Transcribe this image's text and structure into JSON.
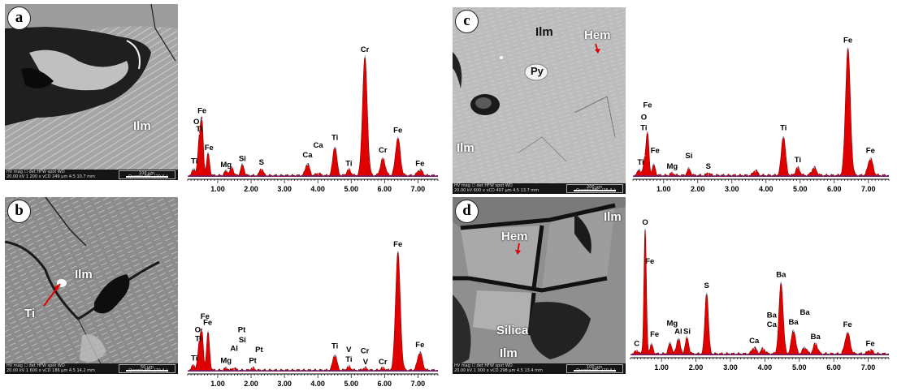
{
  "panels": [
    {
      "letter": "a",
      "labels": [
        {
          "text": "Ilm",
          "color": "white"
        }
      ],
      "sem_bar": {
        "row1": "HV     mag ☐   det   HFW   spot   WD",
        "row2": "20.00 kV  1 200 x  vCD  249 μm  4.5  10.7 mm",
        "scale": "100 μm",
        "instrument": "Quanta FEG (20 A )"
      }
    },
    {
      "letter": "b",
      "labels": [
        {
          "text": "Ilm",
          "color": "white"
        },
        {
          "text": "Ti",
          "color": "white"
        }
      ],
      "sem_bar": {
        "row1": "HV     mag ☐   det   HFW   spot   WD",
        "row2": "20.00 kV  1 600 x  vCD  186 μm  4.5  14.2 mm",
        "scale": "50 μm",
        "instrument": "Quanta FEG (20 A )"
      }
    },
    {
      "letter": "c",
      "labels": [
        {
          "text": "Ilm",
          "color": "dark"
        },
        {
          "text": "Hem",
          "color": "white"
        },
        {
          "text": "Py",
          "color": "dark"
        },
        {
          "text": "Ilm",
          "color": "white"
        }
      ],
      "sem_bar": {
        "row1": "HV     mag ☐   det   HFW   spot   WD",
        "row2": "20.00 kV  600 x  vCD  497 μm  4.5  13.7 mm",
        "scale": "200 μm",
        "instrument": "Quanta FEG (25 A )"
      }
    },
    {
      "letter": "d",
      "labels": [
        {
          "text": "Ilm",
          "color": "white"
        },
        {
          "text": "Hem",
          "color": "white"
        },
        {
          "text": "Silica",
          "color": "white"
        },
        {
          "text": "Ilm",
          "color": "white"
        }
      ],
      "sem_bar": {
        "row1": "HV     mag ☐   det   HFW   spot   WD",
        "row2": "20.00 kV  1 000 x  vCD  298 μm  4.5  13.4 mm",
        "scale": "100 μm",
        "instrument": "Quanta FEG (20 A )"
      }
    }
  ],
  "chart_data": [
    {
      "type": "area",
      "panel": "a",
      "xlim": [
        0.1,
        7.6
      ],
      "x_ticks": [
        "1.00",
        "2.00",
        "3.00",
        "4.00",
        "5.00",
        "6.00",
        "7.00"
      ],
      "x_tick_values": [
        1,
        2,
        3,
        4,
        5,
        6,
        7
      ],
      "ylim": [
        0,
        1
      ],
      "peaks": [
        {
          "x": 0.28,
          "h": 0.06,
          "w": 0.04
        },
        {
          "x": 0.45,
          "h": 0.3,
          "w": 0.045
        },
        {
          "x": 0.53,
          "h": 0.4,
          "w": 0.04
        },
        {
          "x": 0.71,
          "h": 0.18,
          "w": 0.045
        },
        {
          "x": 1.25,
          "h": 0.04,
          "w": 0.05
        },
        {
          "x": 1.42,
          "h": 0.07,
          "w": 0.05
        },
        {
          "x": 1.74,
          "h": 0.09,
          "w": 0.05
        },
        {
          "x": 2.31,
          "h": 0.06,
          "w": 0.05
        },
        {
          "x": 3.69,
          "h": 0.1,
          "w": 0.06
        },
        {
          "x": 4.01,
          "h": 0.02,
          "w": 0.06
        },
        {
          "x": 4.51,
          "h": 0.24,
          "w": 0.06
        },
        {
          "x": 4.93,
          "h": 0.05,
          "w": 0.06
        },
        {
          "x": 5.41,
          "h": 0.97,
          "w": 0.07
        },
        {
          "x": 5.95,
          "h": 0.14,
          "w": 0.07
        },
        {
          "x": 6.4,
          "h": 0.31,
          "w": 0.07
        },
        {
          "x": 7.06,
          "h": 0.05,
          "w": 0.07
        }
      ],
      "annotations": [
        {
          "text": "O",
          "x": 0.36,
          "y": 0.43
        },
        {
          "text": "Fe",
          "x": 0.53,
          "y": 0.52
        },
        {
          "text": "Ti",
          "x": 0.45,
          "y": 0.37
        },
        {
          "text": "Ti",
          "x": 0.3,
          "y": 0.11
        },
        {
          "text": "Fe",
          "x": 0.74,
          "y": 0.22
        },
        {
          "text": "Mg",
          "x": 1.25,
          "y": 0.08
        },
        {
          "text": "Si",
          "x": 1.74,
          "y": 0.13
        },
        {
          "text": "S",
          "x": 2.31,
          "y": 0.1
        },
        {
          "text": "Ca",
          "x": 3.69,
          "y": 0.16
        },
        {
          "text": "Ca",
          "x": 4.01,
          "y": 0.24
        },
        {
          "text": "Ti",
          "x": 4.51,
          "y": 0.3
        },
        {
          "text": "Ti",
          "x": 4.93,
          "y": 0.09
        },
        {
          "text": "Cr",
          "x": 5.41,
          "y": 1.02
        },
        {
          "text": "Cr",
          "x": 5.95,
          "y": 0.2
        },
        {
          "text": "Fe",
          "x": 6.4,
          "y": 0.36
        },
        {
          "text": "Fe",
          "x": 7.06,
          "y": 0.09
        }
      ]
    },
    {
      "type": "area",
      "panel": "b",
      "xlim": [
        0.1,
        7.6
      ],
      "x_ticks": [
        "1.00",
        "2.00",
        "3.00",
        "4.00",
        "5.00",
        "6.00",
        "7.00"
      ],
      "x_tick_values": [
        1,
        2,
        3,
        4,
        5,
        6,
        7
      ],
      "ylim": [
        0,
        1
      ],
      "peaks": [
        {
          "x": 0.27,
          "h": 0.05,
          "w": 0.04
        },
        {
          "x": 0.45,
          "h": 0.22,
          "w": 0.045
        },
        {
          "x": 0.53,
          "h": 0.28,
          "w": 0.04
        },
        {
          "x": 0.71,
          "h": 0.31,
          "w": 0.045
        },
        {
          "x": 1.25,
          "h": 0.02,
          "w": 0.05
        },
        {
          "x": 1.49,
          "h": 0.02,
          "w": 0.05
        },
        {
          "x": 2.05,
          "h": 0.02,
          "w": 0.05
        },
        {
          "x": 4.51,
          "h": 0.13,
          "w": 0.06
        },
        {
          "x": 4.93,
          "h": 0.03,
          "w": 0.06
        },
        {
          "x": 5.41,
          "h": 0.02,
          "w": 0.06
        },
        {
          "x": 5.95,
          "h": 0.02,
          "w": 0.06
        },
        {
          "x": 6.4,
          "h": 0.97,
          "w": 0.07
        },
        {
          "x": 7.06,
          "h": 0.15,
          "w": 0.07
        }
      ],
      "annotations": [
        {
          "text": "O",
          "x": 0.4,
          "y": 0.32
        },
        {
          "text": "Ti",
          "x": 0.42,
          "y": 0.25
        },
        {
          "text": "Fe",
          "x": 0.62,
          "y": 0.43
        },
        {
          "text": "Fe",
          "x": 0.7,
          "y": 0.38
        },
        {
          "text": "Ti",
          "x": 0.3,
          "y": 0.09
        },
        {
          "text": "Mg",
          "x": 1.25,
          "y": 0.07
        },
        {
          "text": "Al",
          "x": 1.49,
          "y": 0.17
        },
        {
          "text": "Pt",
          "x": 1.72,
          "y": 0.32
        },
        {
          "text": "Si",
          "x": 1.74,
          "y": 0.24
        },
        {
          "text": "Pt",
          "x": 2.05,
          "y": 0.07
        },
        {
          "text": "Pt",
          "x": 2.24,
          "y": 0.16
        },
        {
          "text": "Ti",
          "x": 4.51,
          "y": 0.19
        },
        {
          "text": "V",
          "x": 4.93,
          "y": 0.16
        },
        {
          "text": "Ti",
          "x": 4.93,
          "y": 0.08
        },
        {
          "text": "Cr",
          "x": 5.41,
          "y": 0.15
        },
        {
          "text": "V",
          "x": 5.43,
          "y": 0.06
        },
        {
          "text": "Cr",
          "x": 5.95,
          "y": 0.06
        },
        {
          "text": "Fe",
          "x": 6.4,
          "y": 1.02
        },
        {
          "text": "Fe",
          "x": 7.06,
          "y": 0.2
        }
      ]
    },
    {
      "type": "area",
      "panel": "c",
      "xlim": [
        0.1,
        7.6
      ],
      "x_ticks": [
        "1.00",
        "2.00",
        "3.00",
        "4.00",
        "5.00",
        "6.00",
        "7.00"
      ],
      "x_tick_values": [
        1,
        2,
        3,
        4,
        5,
        6,
        7
      ],
      "ylim": [
        0,
        1
      ],
      "peaks": [
        {
          "x": 0.28,
          "h": 0.05,
          "w": 0.04
        },
        {
          "x": 0.45,
          "h": 0.12,
          "w": 0.045
        },
        {
          "x": 0.53,
          "h": 0.3,
          "w": 0.04
        },
        {
          "x": 0.71,
          "h": 0.08,
          "w": 0.045
        },
        {
          "x": 1.25,
          "h": 0.02,
          "w": 0.05
        },
        {
          "x": 1.74,
          "h": 0.05,
          "w": 0.05
        },
        {
          "x": 2.31,
          "h": 0.02,
          "w": 0.05
        },
        {
          "x": 3.69,
          "h": 0.04,
          "w": 0.06
        },
        {
          "x": 4.51,
          "h": 0.3,
          "w": 0.06
        },
        {
          "x": 4.93,
          "h": 0.06,
          "w": 0.06
        },
        {
          "x": 5.41,
          "h": 0.06,
          "w": 0.07
        },
        {
          "x": 6.4,
          "h": 0.96,
          "w": 0.07
        },
        {
          "x": 7.06,
          "h": 0.13,
          "w": 0.07
        }
      ],
      "annotations": [
        {
          "text": "Fe",
          "x": 0.53,
          "y": 0.52
        },
        {
          "text": "O",
          "x": 0.42,
          "y": 0.43
        },
        {
          "text": "Ti",
          "x": 0.42,
          "y": 0.35
        },
        {
          "text": "Fe",
          "x": 0.75,
          "y": 0.18
        },
        {
          "text": "Ti",
          "x": 0.33,
          "y": 0.09
        },
        {
          "text": "Mg",
          "x": 1.25,
          "y": 0.06
        },
        {
          "text": "Si",
          "x": 1.74,
          "y": 0.14
        },
        {
          "text": "S",
          "x": 2.31,
          "y": 0.06
        },
        {
          "text": "Ti",
          "x": 4.51,
          "y": 0.35
        },
        {
          "text": "Ti",
          "x": 4.93,
          "y": 0.11
        },
        {
          "text": "Fe",
          "x": 6.4,
          "y": 1.01
        },
        {
          "text": "Fe",
          "x": 7.06,
          "y": 0.18
        }
      ]
    },
    {
      "type": "area",
      "panel": "d",
      "xlim": [
        0.1,
        7.6
      ],
      "x_ticks": [
        "1.00",
        "2.00",
        "3.00",
        "4.00",
        "5.00",
        "6.00",
        "7.00"
      ],
      "x_tick_values": [
        1,
        2,
        3,
        4,
        5,
        6,
        7
      ],
      "ylim": [
        0,
        1
      ],
      "peaks": [
        {
          "x": 0.28,
          "h": 0.03,
          "w": 0.04
        },
        {
          "x": 0.525,
          "h": 0.93,
          "w": 0.035
        },
        {
          "x": 0.71,
          "h": 0.07,
          "w": 0.045
        },
        {
          "x": 1.25,
          "h": 0.08,
          "w": 0.05
        },
        {
          "x": 1.49,
          "h": 0.12,
          "w": 0.05
        },
        {
          "x": 1.74,
          "h": 0.12,
          "w": 0.05
        },
        {
          "x": 2.31,
          "h": 0.46,
          "w": 0.05
        },
        {
          "x": 3.69,
          "h": 0.05,
          "w": 0.06
        },
        {
          "x": 3.95,
          "h": 0.04,
          "w": 0.06
        },
        {
          "x": 4.47,
          "h": 0.53,
          "w": 0.06
        },
        {
          "x": 4.83,
          "h": 0.18,
          "w": 0.06
        },
        {
          "x": 5.16,
          "h": 0.05,
          "w": 0.06
        },
        {
          "x": 5.47,
          "h": 0.08,
          "w": 0.06
        },
        {
          "x": 6.4,
          "h": 0.16,
          "w": 0.07
        },
        {
          "x": 7.06,
          "h": 0.03,
          "w": 0.07
        }
      ],
      "annotations": [
        {
          "text": "O",
          "x": 0.525,
          "y": 0.97
        },
        {
          "text": "Fe",
          "x": 0.66,
          "y": 0.68
        },
        {
          "text": "C",
          "x": 0.28,
          "y": 0.07
        },
        {
          "text": "Fe",
          "x": 0.8,
          "y": 0.14
        },
        {
          "text": "Mg",
          "x": 1.31,
          "y": 0.22
        },
        {
          "text": "Al",
          "x": 1.49,
          "y": 0.16
        },
        {
          "text": "Si",
          "x": 1.74,
          "y": 0.16
        },
        {
          "text": "S",
          "x": 2.31,
          "y": 0.5
        },
        {
          "text": "Ca",
          "x": 3.69,
          "y": 0.09
        },
        {
          "text": "Ba",
          "x": 4.47,
          "y": 0.58
        },
        {
          "text": "Ba",
          "x": 4.2,
          "y": 0.28
        },
        {
          "text": "Ca",
          "x": 4.2,
          "y": 0.21
        },
        {
          "text": "Ba",
          "x": 4.83,
          "y": 0.23
        },
        {
          "text": "Ba",
          "x": 5.16,
          "y": 0.3
        },
        {
          "text": "Ba",
          "x": 5.47,
          "y": 0.12
        },
        {
          "text": "Fe",
          "x": 6.4,
          "y": 0.21
        },
        {
          "text": "Fe",
          "x": 7.06,
          "y": 0.07
        }
      ]
    }
  ],
  "colors": {
    "peak_fill": "#e00000",
    "baseline": "#2233aa",
    "axis": "#000000",
    "sem_bar": "#151515"
  }
}
